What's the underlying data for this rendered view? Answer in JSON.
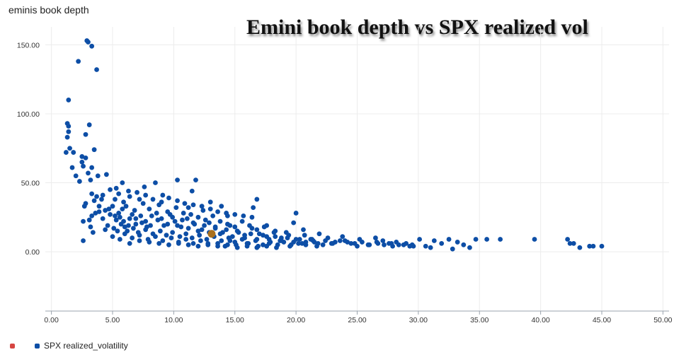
{
  "header": {
    "axis_title": "eminis book depth"
  },
  "chart_data": {
    "type": "scatter",
    "title": "Emini book depth vs SPX realized vol",
    "xlabel": "",
    "ylabel": "eminis book depth",
    "xlim": [
      -0.5,
      50.5
    ],
    "ylim": [
      -43,
      163
    ],
    "xticks": [
      "0.00",
      "5.00",
      "10.00",
      "15.00",
      "20.00",
      "25.00",
      "30.00",
      "35.00",
      "40.00",
      "45.00",
      "50.00"
    ],
    "yticks": [
      "0.00",
      "50.00",
      "100.00",
      "150.00"
    ],
    "grid": true,
    "legend_position": "bottom-left",
    "series": [
      {
        "name": "SPX realized_volatility",
        "color": "#0d4ea6",
        "points": [
          [
            1.3,
            93
          ],
          [
            1.4,
            91
          ],
          [
            1.4,
            87
          ],
          [
            1.3,
            83
          ],
          [
            1.2,
            72
          ],
          [
            1.5,
            75
          ],
          [
            1.8,
            72
          ],
          [
            1.7,
            61
          ],
          [
            2.0,
            55
          ],
          [
            2.3,
            51
          ],
          [
            2.6,
            62
          ],
          [
            2.5,
            65
          ],
          [
            2.5,
            69
          ],
          [
            2.8,
            68
          ],
          [
            2.8,
            85
          ],
          [
            3.1,
            92
          ],
          [
            3.3,
            61
          ],
          [
            3.5,
            74
          ],
          [
            3.0,
            57
          ],
          [
            3.2,
            52
          ],
          [
            3.8,
            55
          ],
          [
            4.5,
            56
          ],
          [
            2.2,
            138
          ],
          [
            2.9,
            153
          ],
          [
            3.0,
            152
          ],
          [
            3.3,
            149
          ],
          [
            3.7,
            132
          ],
          [
            1.4,
            110
          ],
          [
            2.8,
            35
          ],
          [
            2.7,
            33
          ],
          [
            3.3,
            42
          ],
          [
            3.5,
            37
          ],
          [
            2.6,
            22
          ],
          [
            3.2,
            18
          ],
          [
            2.6,
            8
          ],
          [
            3.4,
            14
          ],
          [
            3.9,
            29
          ],
          [
            4.2,
            24
          ],
          [
            4.4,
            16
          ],
          [
            4.7,
            31
          ],
          [
            5.2,
            26
          ],
          [
            5.1,
            17
          ],
          [
            5.8,
            50
          ],
          [
            6.3,
            44
          ],
          [
            6.6,
            27
          ],
          [
            7.2,
            38
          ],
          [
            7.6,
            47
          ],
          [
            8.5,
            50
          ],
          [
            9.1,
            41
          ],
          [
            10.3,
            52
          ],
          [
            11.2,
            32
          ],
          [
            11.5,
            44
          ],
          [
            11.8,
            52
          ],
          [
            12.4,
            30
          ],
          [
            13.0,
            36
          ],
          [
            13.9,
            33
          ],
          [
            14.4,
            26
          ],
          [
            16.4,
            25
          ],
          [
            16.8,
            38
          ],
          [
            16.5,
            32
          ],
          [
            17.6,
            19
          ],
          [
            18.3,
            15
          ],
          [
            19.2,
            14
          ],
          [
            20.0,
            28
          ],
          [
            19.8,
            21
          ],
          [
            20.6,
            16
          ],
          [
            21.2,
            9
          ],
          [
            21.9,
            13
          ],
          [
            22.6,
            10
          ],
          [
            23.2,
            7
          ],
          [
            23.8,
            11
          ],
          [
            24.5,
            6
          ],
          [
            25.2,
            9
          ],
          [
            25.9,
            5
          ],
          [
            26.5,
            10
          ],
          [
            27.1,
            8
          ],
          [
            27.6,
            6
          ],
          [
            28.2,
            7
          ],
          [
            28.8,
            5
          ],
          [
            29.3,
            4
          ],
          [
            30.1,
            9
          ],
          [
            30.6,
            4
          ],
          [
            31.3,
            8
          ],
          [
            31.9,
            6
          ],
          [
            32.5,
            9
          ],
          [
            33.2,
            7
          ],
          [
            33.7,
            5
          ],
          [
            34.2,
            3
          ],
          [
            34.7,
            9
          ],
          [
            35.6,
            9
          ],
          [
            36.7,
            9
          ],
          [
            39.5,
            9
          ],
          [
            42.2,
            9
          ],
          [
            42.4,
            6
          ],
          [
            42.7,
            6
          ],
          [
            43.2,
            3
          ],
          [
            44.0,
            4
          ],
          [
            44.3,
            4
          ],
          [
            45.0,
            4
          ],
          [
            32.8,
            2
          ],
          [
            31.0,
            3
          ],
          [
            29.5,
            5
          ],
          [
            27.9,
            4
          ],
          [
            26.7,
            6
          ],
          [
            25.0,
            4
          ],
          [
            24.0,
            8
          ],
          [
            22.9,
            6
          ],
          [
            21.7,
            4
          ],
          [
            20.5,
            6
          ],
          [
            19.6,
            5
          ],
          [
            18.7,
            8
          ],
          [
            17.8,
            6
          ],
          [
            16.9,
            4
          ],
          [
            16.0,
            6
          ],
          [
            15.1,
            5
          ],
          [
            14.6,
            8
          ],
          [
            14.2,
            4
          ],
          [
            13.6,
            6
          ],
          [
            12.8,
            5
          ],
          [
            12.2,
            8
          ],
          [
            11.6,
            6
          ],
          [
            11.0,
            9
          ],
          [
            10.4,
            7
          ],
          [
            9.8,
            10
          ],
          [
            9.1,
            8
          ],
          [
            8.5,
            11
          ],
          [
            7.9,
            9
          ],
          [
            7.2,
            12
          ],
          [
            6.6,
            10
          ],
          [
            6.0,
            13
          ],
          [
            5.4,
            15
          ],
          [
            5.9,
            22
          ],
          [
            6.3,
            19
          ],
          [
            6.9,
            24
          ],
          [
            7.4,
            21
          ],
          [
            7.8,
            18
          ],
          [
            8.2,
            26
          ],
          [
            8.7,
            23
          ],
          [
            9.2,
            19
          ],
          [
            9.7,
            27
          ],
          [
            10.1,
            22
          ],
          [
            10.6,
            18
          ],
          [
            11.1,
            24
          ],
          [
            11.7,
            20
          ],
          [
            12.3,
            16
          ],
          [
            12.9,
            21
          ],
          [
            13.4,
            17
          ],
          [
            14.0,
            14
          ],
          [
            14.6,
            19
          ],
          [
            15.2,
            15
          ],
          [
            15.8,
            12
          ],
          [
            16.4,
            17
          ],
          [
            17.0,
            13
          ],
          [
            17.6,
            11
          ],
          [
            18.2,
            14
          ],
          [
            18.8,
            10
          ],
          [
            19.4,
            12
          ],
          [
            20.0,
            9
          ],
          [
            20.7,
            12
          ],
          [
            21.4,
            8
          ],
          [
            5.5,
            28
          ],
          [
            6.1,
            33
          ],
          [
            6.8,
            30
          ],
          [
            7.5,
            35
          ],
          [
            8.0,
            31
          ],
          [
            8.8,
            34
          ],
          [
            9.5,
            29
          ],
          [
            10.2,
            32
          ],
          [
            10.8,
            28
          ],
          [
            11.4,
            27
          ],
          [
            12.0,
            25
          ],
          [
            12.6,
            23
          ],
          [
            13.2,
            26
          ],
          [
            13.8,
            22
          ],
          [
            14.4,
            20
          ],
          [
            15.0,
            18
          ],
          [
            15.6,
            22
          ],
          [
            16.2,
            19
          ],
          [
            16.8,
            16
          ],
          [
            17.4,
            18
          ],
          [
            5.7,
            20
          ],
          [
            6.2,
            15
          ],
          [
            6.7,
            17
          ],
          [
            7.1,
            14
          ],
          [
            7.7,
            16
          ],
          [
            8.3,
            13
          ],
          [
            8.9,
            15
          ],
          [
            9.4,
            12
          ],
          [
            9.9,
            14
          ],
          [
            10.5,
            11
          ],
          [
            11.0,
            13
          ],
          [
            11.5,
            10
          ],
          [
            12.1,
            12
          ],
          [
            12.7,
            9
          ],
          [
            13.3,
            11
          ],
          [
            13.9,
            8
          ],
          [
            14.5,
            10
          ],
          [
            15.0,
            7
          ],
          [
            15.6,
            9
          ],
          [
            16.1,
            6
          ],
          [
            16.7,
            8
          ],
          [
            17.3,
            5
          ],
          [
            17.9,
            7
          ],
          [
            18.5,
            5
          ],
          [
            19.0,
            7
          ],
          [
            19.5,
            4
          ],
          [
            20.2,
            6
          ],
          [
            20.8,
            5
          ],
          [
            21.5,
            7
          ],
          [
            22.2,
            5
          ],
          [
            5.3,
            23
          ],
          [
            5.6,
            25
          ],
          [
            6.0,
            18
          ],
          [
            6.4,
            24
          ],
          [
            6.9,
            20
          ],
          [
            7.3,
            26
          ],
          [
            7.7,
            22
          ],
          [
            8.1,
            19
          ],
          [
            8.6,
            28
          ],
          [
            9.0,
            24
          ],
          [
            9.5,
            20
          ],
          [
            9.9,
            25
          ],
          [
            10.3,
            19
          ],
          [
            10.7,
            23
          ],
          [
            11.2,
            17
          ],
          [
            11.6,
            21
          ],
          [
            12.0,
            15
          ],
          [
            12.5,
            19
          ],
          [
            12.9,
            14
          ],
          [
            13.4,
            18
          ],
          [
            13.8,
            13
          ],
          [
            14.3,
            16
          ],
          [
            14.8,
            11
          ],
          [
            15.3,
            14
          ],
          [
            15.8,
            10
          ],
          [
            16.3,
            13
          ],
          [
            16.8,
            9
          ],
          [
            17.3,
            12
          ],
          [
            17.8,
            9
          ],
          [
            18.3,
            11
          ],
          [
            18.8,
            8
          ],
          [
            19.3,
            10
          ],
          [
            19.8,
            7
          ],
          [
            20.3,
            9
          ],
          [
            20.8,
            7
          ],
          [
            21.3,
            9
          ],
          [
            21.8,
            6
          ],
          [
            22.4,
            8
          ],
          [
            23.0,
            6
          ],
          [
            23.6,
            8
          ],
          [
            24.2,
            7
          ],
          [
            24.8,
            6
          ],
          [
            25.4,
            7
          ],
          [
            26.0,
            5
          ],
          [
            26.6,
            7
          ],
          [
            27.2,
            5
          ],
          [
            27.8,
            6
          ],
          [
            28.4,
            5
          ],
          [
            29.0,
            6
          ],
          [
            29.6,
            4
          ],
          [
            4.8,
            27
          ],
          [
            5.0,
            33
          ],
          [
            5.2,
            38
          ],
          [
            5.5,
            42
          ],
          [
            5.9,
            36
          ],
          [
            6.4,
            40
          ],
          [
            7.0,
            43
          ],
          [
            7.7,
            41
          ],
          [
            8.3,
            38
          ],
          [
            9.0,
            36
          ],
          [
            9.6,
            39
          ],
          [
            10.3,
            37
          ],
          [
            10.9,
            35
          ],
          [
            11.6,
            34
          ],
          [
            12.3,
            33
          ],
          [
            13.0,
            31
          ],
          [
            13.6,
            29
          ],
          [
            14.3,
            28
          ],
          [
            15.0,
            27
          ],
          [
            15.7,
            26
          ],
          [
            8.0,
            7
          ],
          [
            8.8,
            6
          ],
          [
            9.6,
            5
          ],
          [
            10.4,
            6
          ],
          [
            11.2,
            5
          ],
          [
            12.0,
            4
          ],
          [
            12.8,
            6
          ],
          [
            13.6,
            4
          ],
          [
            14.4,
            5
          ],
          [
            15.2,
            3
          ],
          [
            16.0,
            4
          ],
          [
            16.8,
            3
          ],
          [
            17.6,
            4
          ],
          [
            18.4,
            3
          ],
          [
            6.4,
            6
          ],
          [
            7.2,
            8
          ],
          [
            5.6,
            9
          ],
          [
            5.0,
            11
          ],
          [
            4.6,
            19
          ],
          [
            4.4,
            30
          ],
          [
            3.7,
            40
          ],
          [
            3.6,
            28
          ],
          [
            3.3,
            26
          ],
          [
            3.1,
            23
          ],
          [
            3.9,
            33
          ],
          [
            4.1,
            38
          ],
          [
            4.2,
            41
          ],
          [
            4.8,
            45
          ],
          [
            5.3,
            46
          ],
          [
            5.8,
            31
          ]
        ]
      }
    ],
    "highlight": {
      "name": "",
      "color": "#d64541",
      "points": []
    },
    "marker_point": {
      "x": 13.1,
      "y": 13,
      "color": "#a9701e"
    }
  },
  "legend": {
    "items": [
      {
        "label": "",
        "color": "#d64541"
      },
      {
        "label": "SPX realized_volatility",
        "color": "#0d4ea6"
      }
    ]
  }
}
